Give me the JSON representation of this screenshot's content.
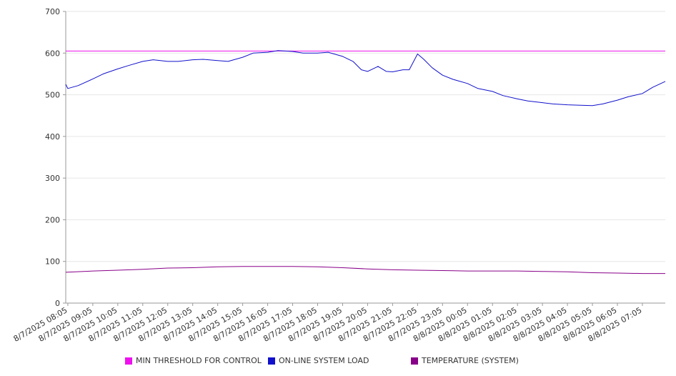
{
  "chart_data": {
    "type": "line",
    "title": "",
    "xlabel": "",
    "ylabel": "",
    "ylim": [
      0,
      700
    ],
    "yticks": [
      "0",
      "100",
      "200",
      "300",
      "400",
      "500",
      "600",
      "700"
    ],
    "x_ticks": [
      "8/7/2025 08:05",
      "8/7/2025 09:05",
      "8/7/2025 10:05",
      "8/7/2025 11:05",
      "8/7/2025 12:05",
      "8/7/2025 13:05",
      "8/7/2025 14:05",
      "8/7/2025 15:05",
      "8/7/2025 16:05",
      "8/7/2025 17:05",
      "8/7/2025 18:05",
      "8/7/2025 19:05",
      "8/7/2025 20:05",
      "8/7/2025 21:05",
      "8/7/2025 22:05",
      "8/7/2025 23:05",
      "8/8/2025 00:05",
      "8/8/2025 01:05",
      "8/8/2025 02:05",
      "8/8/2025 03:05",
      "8/8/2025 04:05",
      "8/8/2025 05:05",
      "8/8/2025 06:05",
      "8/8/2025 07:05"
    ],
    "grid": true,
    "legend": "bottom",
    "series": [
      {
        "name": "MIN THRESHOLD FOR CONTROL",
        "color": "#ee11ee",
        "x": [
          "8/7/2025 08:00",
          "8/8/2025 08:00"
        ],
        "values": [
          605,
          605
        ]
      },
      {
        "name": "ON-LINE SYSTEM LOAD",
        "color": "#1111cc",
        "x": [
          "8/7/2025 08:00",
          "8/7/2025 08:05",
          "8/7/2025 08:30",
          "8/7/2025 09:05",
          "8/7/2025 09:30",
          "8/7/2025 10:05",
          "8/7/2025 10:30",
          "8/7/2025 11:05",
          "8/7/2025 11:30",
          "8/7/2025 12:05",
          "8/7/2025 12:30",
          "8/7/2025 13:05",
          "8/7/2025 13:30",
          "8/7/2025 14:05",
          "8/7/2025 14:30",
          "8/7/2025 15:05",
          "8/7/2025 15:30",
          "8/7/2025 16:05",
          "8/7/2025 16:30",
          "8/7/2025 17:05",
          "8/7/2025 17:30",
          "8/7/2025 18:05",
          "8/7/2025 18:30",
          "8/7/2025 19:05",
          "8/7/2025 19:30",
          "8/7/2025 19:50",
          "8/7/2025 20:05",
          "8/7/2025 20:30",
          "8/7/2025 20:50",
          "8/7/2025 21:05",
          "8/7/2025 21:30",
          "8/7/2025 21:45",
          "8/7/2025 22:05",
          "8/7/2025 22:20",
          "8/7/2025 22:40",
          "8/7/2025 23:05",
          "8/7/2025 23:30",
          "8/8/2025 00:05",
          "8/8/2025 00:30",
          "8/8/2025 01:05",
          "8/8/2025 01:30",
          "8/8/2025 02:05",
          "8/8/2025 02:30",
          "8/8/2025 03:05",
          "8/8/2025 03:30",
          "8/8/2025 04:05",
          "8/8/2025 04:30",
          "8/8/2025 05:05",
          "8/8/2025 05:30",
          "8/8/2025 06:05",
          "8/8/2025 06:30",
          "8/8/2025 07:05",
          "8/8/2025 07:30",
          "8/8/2025 08:00"
        ],
        "values": [
          525,
          515,
          522,
          538,
          550,
          562,
          570,
          580,
          584,
          580,
          580,
          584,
          585,
          582,
          580,
          590,
          600,
          602,
          606,
          604,
          600,
          600,
          602,
          592,
          580,
          560,
          556,
          568,
          556,
          555,
          560,
          560,
          598,
          585,
          565,
          547,
          537,
          527,
          515,
          508,
          498,
          490,
          485,
          481,
          478,
          476,
          475,
          474,
          478,
          487,
          495,
          503,
          518,
          532
        ]
      },
      {
        "name": "TEMPERATURE (SYSTEM)",
        "color": "#880088",
        "x": [
          "8/7/2025 08:00",
          "8/7/2025 09:05",
          "8/7/2025 10:05",
          "8/7/2025 11:05",
          "8/7/2025 12:05",
          "8/7/2025 13:05",
          "8/7/2025 14:05",
          "8/7/2025 15:05",
          "8/7/2025 16:05",
          "8/7/2025 17:05",
          "8/7/2025 18:05",
          "8/7/2025 19:05",
          "8/7/2025 20:05",
          "8/7/2025 21:05",
          "8/7/2025 22:05",
          "8/7/2025 23:05",
          "8/8/2025 00:05",
          "8/8/2025 01:05",
          "8/8/2025 02:05",
          "8/8/2025 03:05",
          "8/8/2025 04:05",
          "8/8/2025 05:05",
          "8/8/2025 06:05",
          "8/8/2025 07:05",
          "8/8/2025 08:00"
        ],
        "values": [
          74,
          77,
          79,
          81,
          84,
          85,
          87,
          88,
          88,
          88,
          87,
          85,
          82,
          80,
          79,
          78,
          77,
          77,
          77,
          76,
          75,
          73,
          72,
          71,
          71
        ]
      }
    ]
  },
  "legend": {
    "items": [
      {
        "label": "MIN THRESHOLD FOR CONTROL",
        "color": "#ee11ee"
      },
      {
        "label": "ON-LINE SYSTEM LOAD",
        "color": "#1111cc"
      },
      {
        "label": "TEMPERATURE (SYSTEM)",
        "color": "#880088"
      }
    ]
  }
}
